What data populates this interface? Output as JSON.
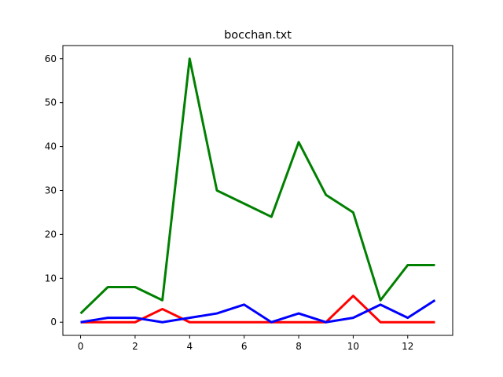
{
  "chart_data": {
    "type": "line",
    "title": "bocchan.txt",
    "xlabel": "",
    "ylabel": "",
    "xlim": [
      -0.65,
      13.65
    ],
    "ylim": [
      -3,
      63
    ],
    "xticks": [
      0,
      2,
      4,
      6,
      8,
      10,
      12
    ],
    "yticks": [
      0,
      10,
      20,
      30,
      40,
      50,
      60
    ],
    "x": [
      0,
      1,
      2,
      3,
      4,
      5,
      6,
      7,
      8,
      9,
      10,
      11,
      12,
      13
    ],
    "series": [
      {
        "color": "#008000",
        "values": [
          2,
          8,
          8,
          5,
          60,
          30,
          27,
          24,
          41,
          29,
          25,
          5,
          13,
          13
        ]
      },
      {
        "color": "#ff0000",
        "values": [
          0,
          0,
          0,
          3,
          0,
          0,
          0,
          0,
          0,
          0,
          6,
          0,
          0,
          0
        ]
      },
      {
        "color": "#0000ff",
        "values": [
          0,
          1,
          1,
          0,
          1,
          2,
          4,
          0,
          2,
          0,
          1,
          4,
          1,
          5
        ]
      }
    ],
    "grid": false,
    "legend": "none"
  }
}
